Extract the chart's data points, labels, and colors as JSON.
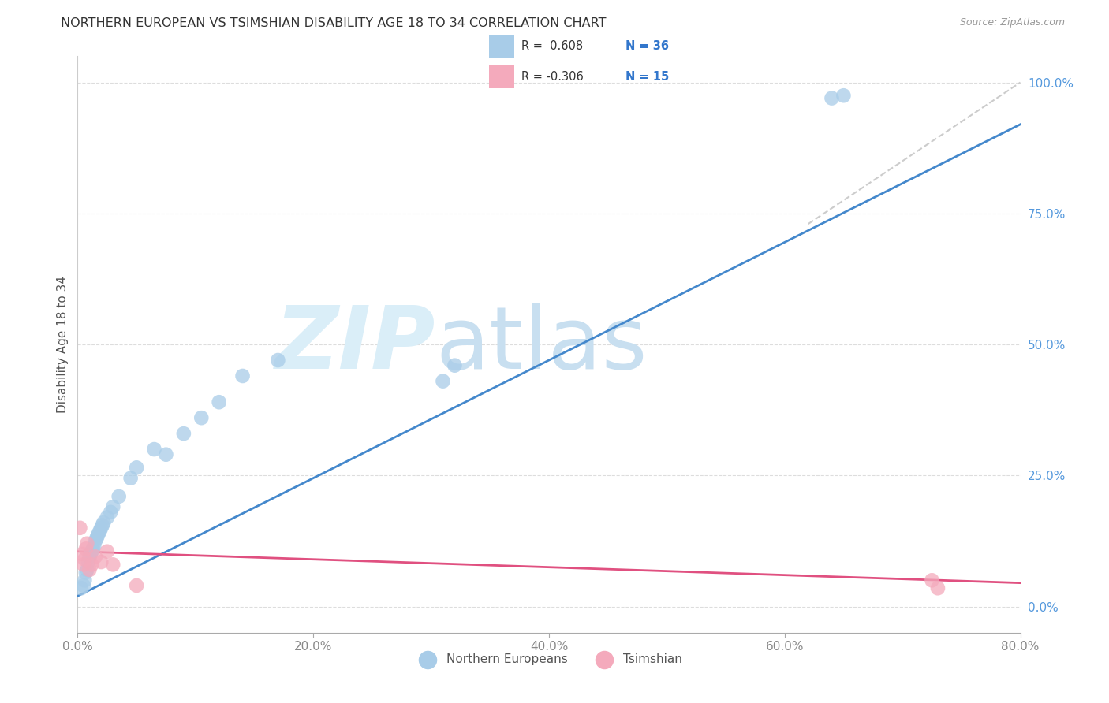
{
  "title": "NORTHERN EUROPEAN VS TSIMSHIAN DISABILITY AGE 18 TO 34 CORRELATION CHART",
  "source": "Source: ZipAtlas.com",
  "ylabel": "Disability Age 18 to 34",
  "legend_blue_label": "Northern Europeans",
  "legend_pink_label": "Tsimshian",
  "blue_scatter_x": [
    0.3,
    0.5,
    0.6,
    0.7,
    0.8,
    0.9,
    1.0,
    1.1,
    1.2,
    1.3,
    1.4,
    1.5,
    1.6,
    1.7,
    1.8,
    1.9,
    2.0,
    2.1,
    2.2,
    2.5,
    2.8,
    3.0,
    3.5,
    4.5,
    5.0,
    6.5,
    7.5,
    9.0,
    10.5,
    12.0,
    14.0,
    17.0,
    31.0,
    32.0,
    64.0,
    65.0
  ],
  "blue_scatter_y": [
    3.5,
    4.0,
    5.0,
    6.5,
    7.0,
    8.5,
    9.5,
    10.0,
    10.5,
    11.0,
    11.5,
    12.5,
    13.0,
    13.5,
    14.0,
    14.5,
    15.0,
    15.5,
    16.0,
    17.0,
    18.0,
    19.0,
    21.0,
    24.5,
    26.5,
    30.0,
    29.0,
    33.0,
    36.0,
    39.0,
    44.0,
    47.0,
    43.0,
    46.0,
    97.0,
    97.5
  ],
  "pink_scatter_x": [
    0.2,
    0.4,
    0.5,
    0.6,
    0.7,
    0.8,
    1.0,
    1.2,
    1.5,
    2.0,
    2.5,
    3.0,
    5.0,
    72.5,
    73.0
  ],
  "pink_scatter_y": [
    15.0,
    10.0,
    8.0,
    9.0,
    11.0,
    12.0,
    7.0,
    8.0,
    9.5,
    8.5,
    10.5,
    8.0,
    4.0,
    5.0,
    3.5
  ],
  "blue_line_x": [
    0,
    80
  ],
  "blue_line_y": [
    2.0,
    92.0
  ],
  "pink_line_x": [
    0,
    80
  ],
  "pink_line_y": [
    10.5,
    4.5
  ],
  "gray_line_x": [
    62,
    80
  ],
  "gray_line_y": [
    73,
    100
  ],
  "xlim": [
    0,
    80
  ],
  "ylim": [
    -5,
    105
  ],
  "xtick_positions": [
    0,
    20,
    40,
    60,
    80
  ],
  "ytick_right_positions": [
    0,
    25,
    50,
    75,
    100
  ],
  "ytick_right_labels": [
    "0.0%",
    "25.0%",
    "50.0%",
    "75.0%",
    "100.0%"
  ],
  "xtick_labels": [
    "0.0%",
    "20.0%",
    "40.0%",
    "60.0%",
    "80.0%"
  ],
  "blue_color": "#a8cce8",
  "blue_line_color": "#4488cc",
  "pink_color": "#f4aabc",
  "pink_line_color": "#e05080",
  "gray_line_color": "#cccccc",
  "watermark_zip_color": "#daeef8",
  "watermark_atlas_color": "#c8dff0",
  "background_color": "#ffffff",
  "grid_color": "#dddddd",
  "title_color": "#333333",
  "source_color": "#999999",
  "right_tick_color": "#5599dd",
  "bottom_tick_color": "#888888"
}
